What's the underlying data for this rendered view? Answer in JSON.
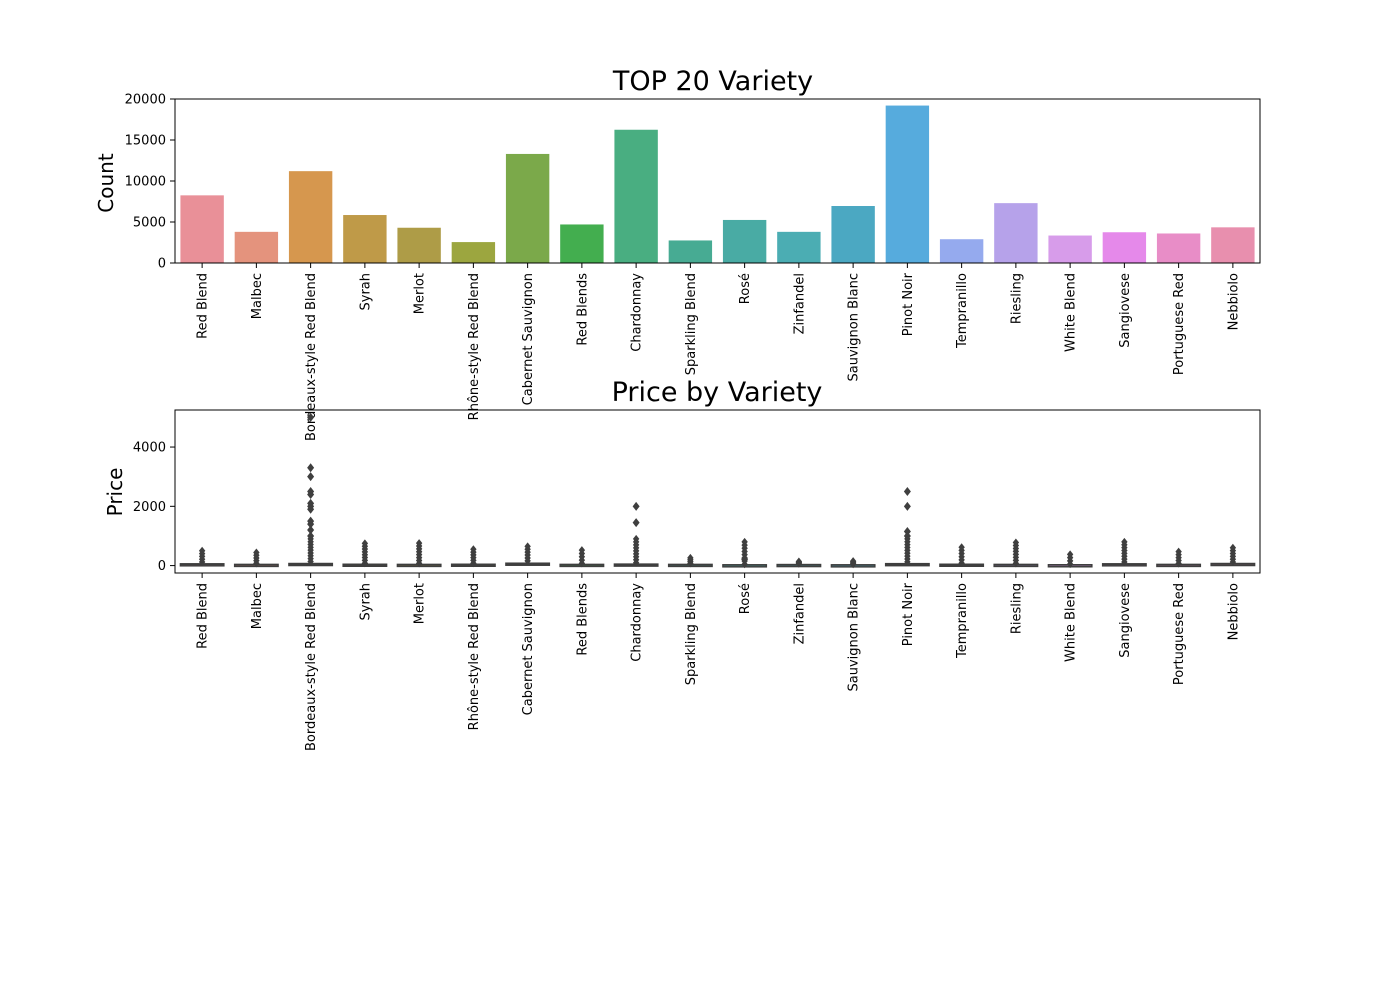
{
  "chart_data": [
    {
      "type": "bar",
      "title": "TOP 20 Variety",
      "xlabel": "",
      "ylabel": "Count",
      "ylim": [
        0,
        20000
      ],
      "yticks": [
        0,
        5000,
        10000,
        15000,
        20000
      ],
      "categories": [
        "Red Blend",
        "Malbec",
        "Bordeaux-style Red Blend",
        "Syrah",
        "Merlot",
        "Rhône-style Red Blend",
        "Cabernet Sauvignon",
        "Red Blends",
        "Chardonnay",
        "Sparkling Blend",
        "Rosé",
        "Zinfandel",
        "Sauvignon Blanc",
        "Pinot Noir",
        "Tempranillo",
        "Riesling",
        "White Blend",
        "Sangiovese",
        "Portuguese Red",
        "Nebbiolo"
      ],
      "values": [
        8250,
        3800,
        11200,
        5850,
        4300,
        2550,
        13300,
        4700,
        16250,
        2750,
        5250,
        3800,
        6950,
        19200,
        2900,
        7300,
        3350,
        3750,
        3600,
        4350
      ],
      "colors": [
        "#e99098",
        "#e4937d",
        "#d6974e",
        "#bf9a48",
        "#ae9c47",
        "#9ca63f",
        "#7ba94a",
        "#43ae4f",
        "#49ae81",
        "#47ab93",
        "#49aba4",
        "#4badb3",
        "#4ba8c2",
        "#56abdd",
        "#95aaee",
        "#b6a2ea",
        "#d79cea",
        "#e589ea",
        "#e88dc7",
        "#e88fae"
      ],
      "grid": false,
      "legend": "none"
    },
    {
      "type": "box",
      "title": "Price by Variety",
      "xlabel": "",
      "ylabel": "Price",
      "ylim": [
        -250,
        5250
      ],
      "yticks": [
        0,
        2000,
        4000
      ],
      "categories": [
        "Red Blend",
        "Malbec",
        "Bordeaux-style Red Blend",
        "Syrah",
        "Merlot",
        "Rhône-style Red Blend",
        "Cabernet Sauvignon",
        "Red Blends",
        "Chardonnay",
        "Sparkling Blend",
        "Rosé",
        "Zinfandel",
        "Sauvignon Blanc",
        "Pinot Noir",
        "Tempranillo",
        "Riesling",
        "White Blend",
        "Sangiovese",
        "Portuguese Red",
        "Nebbiolo"
      ],
      "boxes": [
        {
          "q1": 20,
          "median": 35,
          "q3": 60,
          "whisker_high": 120,
          "max": 500
        },
        {
          "q1": 15,
          "median": 25,
          "q3": 40,
          "whisker_high": 75,
          "max": 440
        },
        {
          "q1": 25,
          "median": 40,
          "q3": 70,
          "whisker_high": 140,
          "max": 5000,
          "outliers": [
            3300,
            3000,
            2500,
            2400,
            2100,
            2000,
            1900,
            1500,
            1400,
            1200,
            1000
          ]
        },
        {
          "q1": 20,
          "median": 30,
          "q3": 45,
          "whisker_high": 80,
          "max": 750
        },
        {
          "q1": 15,
          "median": 25,
          "q3": 40,
          "whisker_high": 75,
          "max": 760
        },
        {
          "q1": 20,
          "median": 30,
          "q3": 45,
          "whisker_high": 80,
          "max": 550
        },
        {
          "q1": 25,
          "median": 45,
          "q3": 80,
          "whisker_high": 160,
          "max": 650
        },
        {
          "q1": 15,
          "median": 25,
          "q3": 40,
          "whisker_high": 75,
          "max": 520
        },
        {
          "q1": 18,
          "median": 30,
          "q3": 50,
          "whisker_high": 95,
          "max": 2000,
          "outliers": [
            1450
          ]
        },
        {
          "q1": 15,
          "median": 25,
          "q3": 40,
          "whisker_high": 75,
          "max": 260
        },
        {
          "q1": 12,
          "median": 18,
          "q3": 26,
          "whisker_high": 45,
          "max": 800,
          "outliers": [
            220
          ]
        },
        {
          "q1": 15,
          "median": 22,
          "q3": 35,
          "whisker_high": 65,
          "max": 140
        },
        {
          "q1": 12,
          "median": 18,
          "q3": 25,
          "whisker_high": 45,
          "max": 150
        },
        {
          "q1": 25,
          "median": 42,
          "q3": 65,
          "whisker_high": 125,
          "max": 2500,
          "outliers": [
            2000,
            1150,
            1000
          ]
        },
        {
          "q1": 15,
          "median": 25,
          "q3": 45,
          "whisker_high": 85,
          "max": 620
        },
        {
          "q1": 15,
          "median": 25,
          "q3": 40,
          "whisker_high": 75,
          "max": 780
        },
        {
          "q1": 12,
          "median": 18,
          "q3": 28,
          "whisker_high": 50,
          "max": 380
        },
        {
          "q1": 20,
          "median": 35,
          "q3": 60,
          "whisker_high": 120,
          "max": 800
        },
        {
          "q1": 15,
          "median": 25,
          "q3": 40,
          "whisker_high": 70,
          "max": 470
        },
        {
          "q1": 35,
          "median": 50,
          "q3": 70,
          "whisker_high": 120,
          "max": 600
        }
      ],
      "colors": [
        "#e99098",
        "#e4937d",
        "#d6974e",
        "#bf9a48",
        "#ae9c47",
        "#9ca63f",
        "#7ba94a",
        "#43ae4f",
        "#49ae81",
        "#47ab93",
        "#49aba4",
        "#4badb3",
        "#4ba8c2",
        "#56abdd",
        "#95aaee",
        "#b6a2ea",
        "#d79cea",
        "#e589ea",
        "#e88dc7",
        "#e88fae"
      ],
      "grid": false,
      "legend": "none"
    }
  ]
}
